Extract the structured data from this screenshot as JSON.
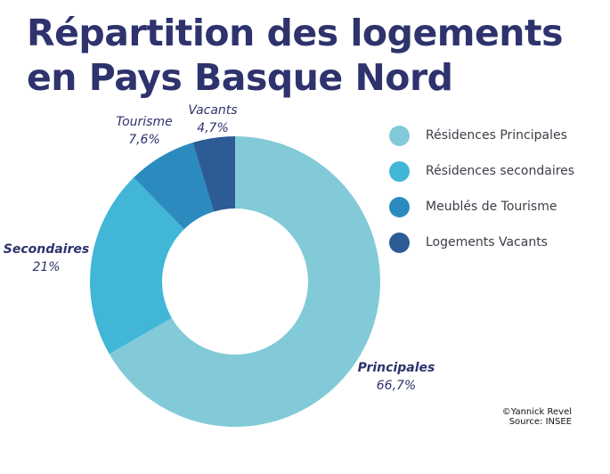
{
  "title": {
    "line1": "Répartition des logements",
    "line2": "en Pays Basque Nord"
  },
  "credit": {
    "author": "©Yannick Revel",
    "source": "Source: INSEE"
  },
  "chart_data": {
    "type": "pie",
    "donut": true,
    "categories": [
      "Résidences Principales",
      "Résidences secondaires",
      "Meublés de Tourisme",
      "Logements Vacants"
    ],
    "values": [
      66.7,
      21,
      7.6,
      4.7
    ],
    "slice_labels": [
      {
        "name": "Principales",
        "value": "66,7%"
      },
      {
        "name": "Secondaires",
        "value": "21%"
      },
      {
        "name": "Tourisme",
        "value": "7,6%"
      },
      {
        "name": "Vacants",
        "value": "4,7%"
      }
    ],
    "colors": [
      "#82cad8",
      "#41b6d6",
      "#2b8bbf",
      "#2d5b95"
    ],
    "legend": {
      "placement": "right",
      "items": [
        "Résidences Principales",
        "Résidences secondaires",
        "Meublés de Tourisme",
        "Logements Vacants"
      ]
    }
  }
}
